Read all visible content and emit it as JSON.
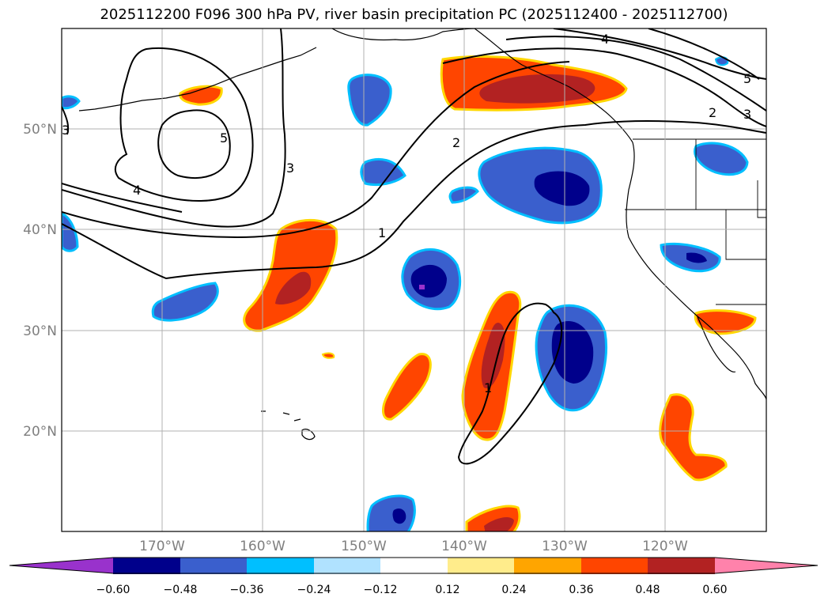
{
  "title": "2025112200 F096 300 hPa PV, river basin precipitation PC (2025112400 - 2025112700)",
  "lat_labels": [
    "50°N",
    "40°N",
    "30°N",
    "20°N"
  ],
  "lon_labels": [
    "170°W",
    "160°W",
    "150°W",
    "140°W",
    "130°W",
    "120°W"
  ],
  "contour_labels": [
    "1",
    "1",
    "2",
    "2",
    "3",
    "3",
    "3",
    "4",
    "4",
    "5",
    "5"
  ],
  "colorbar": {
    "ticks": [
      "−0.60",
      "−0.48",
      "−0.36",
      "−0.24",
      "−0.12",
      "0.12",
      "0.24",
      "0.36",
      "0.48",
      "0.60"
    ],
    "colors": [
      "#9932cc",
      "#00008b",
      "#3a5fcd",
      "#00bfff",
      "#b0e2ff",
      "#ffffff",
      "#ffec8b",
      "#ffa500",
      "#ff4500",
      "#b22222",
      "#ff82ab"
    ]
  }
}
